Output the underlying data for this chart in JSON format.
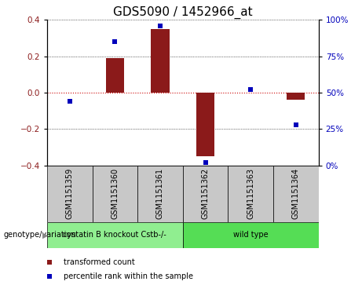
{
  "title": "GDS5090 / 1452966_at",
  "samples": [
    "GSM1151359",
    "GSM1151360",
    "GSM1151361",
    "GSM1151362",
    "GSM1151363",
    "GSM1151364"
  ],
  "transformed_count": [
    0.0,
    0.19,
    0.35,
    -0.35,
    0.0,
    -0.04
  ],
  "percentile_rank": [
    44,
    85,
    96,
    2,
    52,
    28
  ],
  "ylim_left": [
    -0.4,
    0.4
  ],
  "ylim_right": [
    0,
    100
  ],
  "yticks_left": [
    -0.4,
    -0.2,
    0.0,
    0.2,
    0.4
  ],
  "yticks_right": [
    0,
    25,
    50,
    75,
    100
  ],
  "bar_color": "#8B1A1A",
  "dot_color": "#0000BB",
  "groups": [
    {
      "label": "cystatin B knockout Cstb-/-",
      "indices": [
        0,
        1,
        2
      ],
      "color": "#90EE90"
    },
    {
      "label": "wild type",
      "indices": [
        3,
        4,
        5
      ],
      "color": "#55DD55"
    }
  ],
  "genotype_label": "genotype/variation",
  "legend_bar_label": "transformed count",
  "legend_dot_label": "percentile rank within the sample",
  "grid_color": "#000000",
  "zero_line_color": "#CC0000",
  "sample_box_color": "#C8C8C8",
  "title_fontsize": 11,
  "tick_fontsize": 7.5,
  "sample_fontsize": 7,
  "geno_fontsize": 7,
  "legend_fontsize": 7
}
